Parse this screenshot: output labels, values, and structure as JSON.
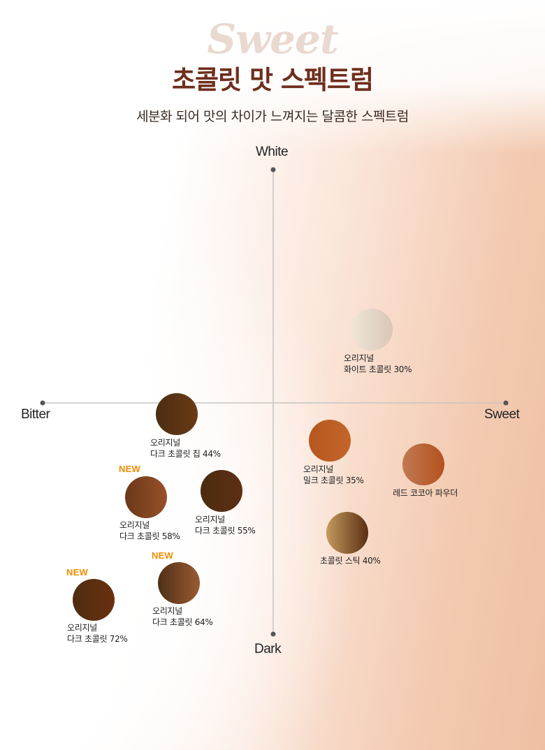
{
  "header": {
    "script_word": "Sweet",
    "title": "초콜릿 맛 스펙트럼",
    "subtitle": "세분화 되어 맛의 차이가 느껴지는 달콤한 스펙트럼"
  },
  "axes": {
    "top": "White",
    "bottom": "Dark",
    "left": "Bitter",
    "right": "Sweet"
  },
  "colors": {
    "title": "#6e2e1c",
    "axis_line": "#c8c4c2",
    "new_badge": "#f28c00"
  },
  "products": [
    {
      "line1": "오리지널",
      "line2": "화이트 초콜릿 30%",
      "new": "",
      "swatch": [
        "#efe6da",
        "#d9c6b6"
      ]
    },
    {
      "line1": "오리지널",
      "line2": "다크 초콜릿 칩 44%",
      "new": "",
      "swatch": [
        "#4a2e12",
        "#6b3a14"
      ]
    },
    {
      "line1": "오리지널",
      "line2": "밀크 초콜릿 35%",
      "new": "",
      "swatch": [
        "#b5571f",
        "#c4652a"
      ]
    },
    {
      "line1": "",
      "line2": "레드 코코아 파우더",
      "new": "",
      "swatch": [
        "#c07a55",
        "#b4511c"
      ]
    },
    {
      "line1": "오리지널",
      "line2": "다크 초콜릿 58%",
      "new": "NEW",
      "swatch": [
        "#6b3818",
        "#98502a"
      ]
    },
    {
      "line1": "오리지널",
      "line2": "다크 초콜릿 55%",
      "new": "",
      "swatch": [
        "#4a2c10",
        "#5e2f14"
      ]
    },
    {
      "line1": "",
      "line2": "초콜릿 스틱 40%",
      "new": "",
      "swatch": [
        "#c49a5c",
        "#5a2e14"
      ]
    },
    {
      "line1": "오리지널",
      "line2": "다크 초콜릿 64%",
      "new": "NEW",
      "swatch": [
        "#4e3018",
        "#9a5a32"
      ]
    },
    {
      "line1": "오리지널",
      "line2": "다크 초콜릿 72%",
      "new": "NEW",
      "swatch": [
        "#4e2d10",
        "#6a3010"
      ]
    }
  ]
}
